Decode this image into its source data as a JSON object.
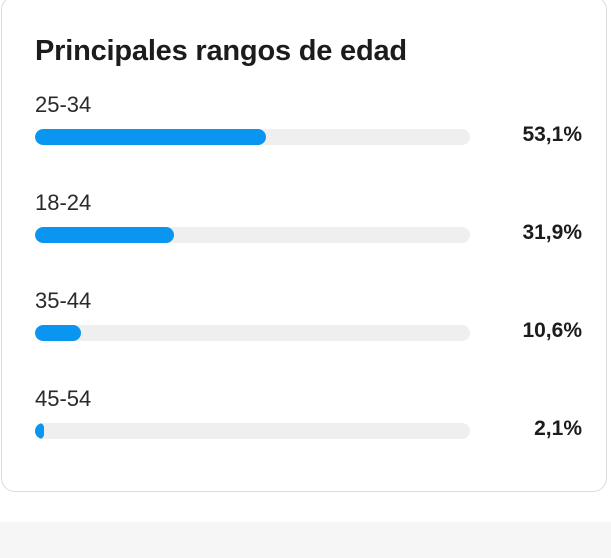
{
  "chart_data": {
    "type": "bar",
    "orientation": "horizontal",
    "title": "Principales rangos de edad",
    "categories": [
      "25-34",
      "18-24",
      "35-44",
      "45-54"
    ],
    "values": [
      53.1,
      31.9,
      10.6,
      2.1
    ],
    "value_labels": [
      "53,1%",
      "31,9%",
      "10,6%",
      "2,1%"
    ],
    "unit": "%",
    "xlim": [
      0,
      100
    ],
    "grid": false
  },
  "colors": {
    "bar": "#0a95f0",
    "track": "#efefef",
    "text": "#1c1c1c"
  }
}
